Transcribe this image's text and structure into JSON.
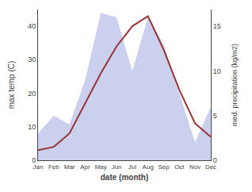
{
  "chart_data": {
    "type": "line",
    "categories": [
      "Jan",
      "Feb",
      "Mar",
      "Apr",
      "May",
      "Jun",
      "Jul",
      "Aug",
      "Sep",
      "Oct",
      "Nov",
      "Dec"
    ],
    "series": [
      {
        "type": "line",
        "color": "#993333",
        "values": [
          3,
          4,
          8,
          17,
          26,
          34,
          40,
          43,
          33,
          21,
          11,
          7
        ]
      },
      {
        "type": "area",
        "color": "#b8c0e8",
        "axis": "y2",
        "values": [
          3,
          5,
          4,
          9,
          16.5,
          16,
          10,
          16,
          13,
          7.5,
          2,
          6
        ]
      }
    ],
    "xlabel": "date (month)",
    "ylabel": "max temp (C)",
    "y2label": "med. precipitation (kg/m2)",
    "ylim": [
      0,
      45
    ],
    "yticks": [
      0,
      10,
      20,
      30,
      40
    ],
    "y2lim": [
      0,
      16.875
    ],
    "y2ticks": [
      0,
      5,
      10,
      15
    ],
    "grid": false
  }
}
